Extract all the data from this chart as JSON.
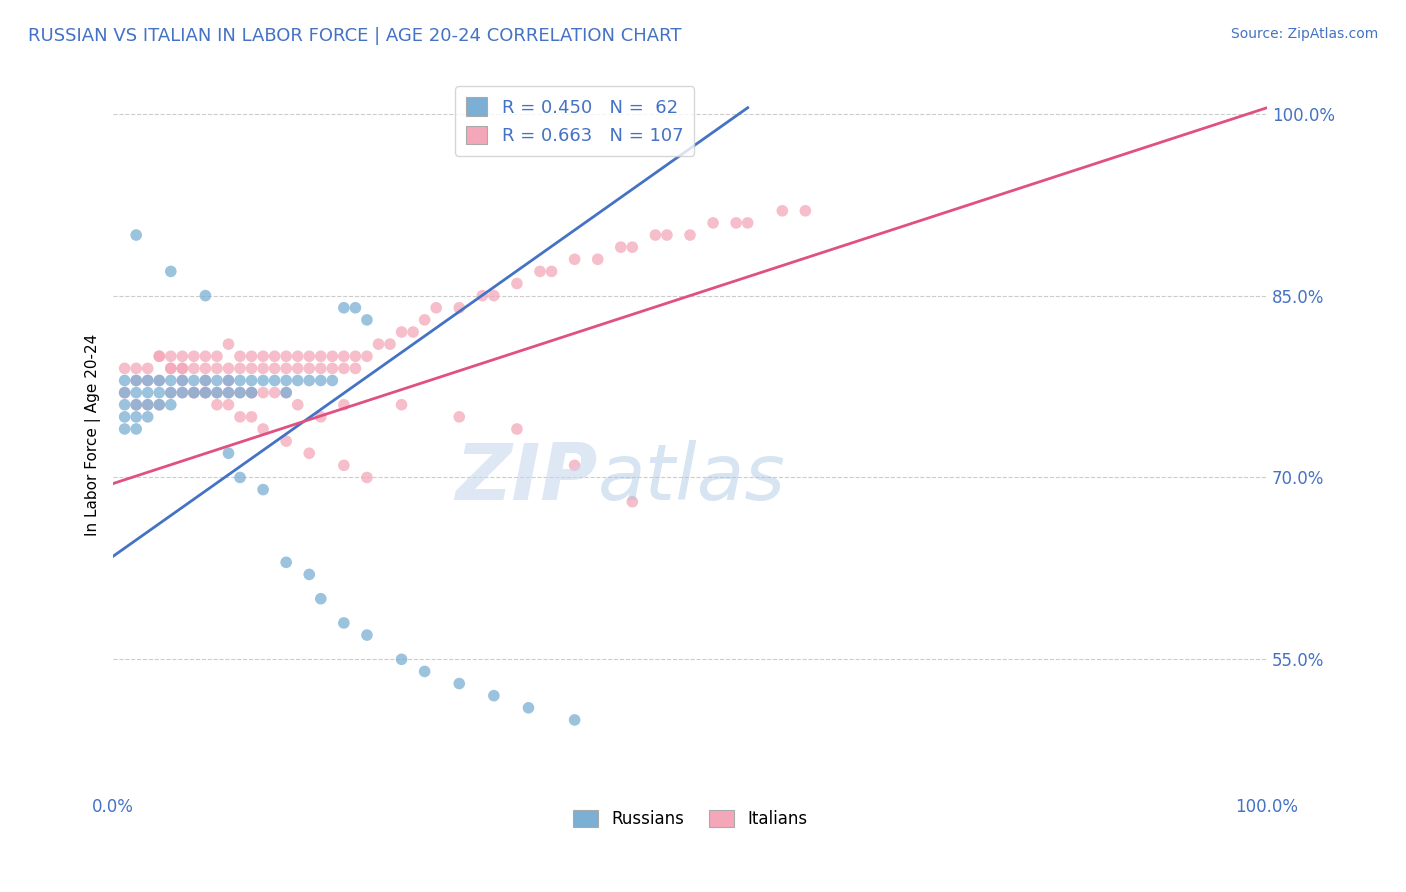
{
  "title": "RUSSIAN VS ITALIAN IN LABOR FORCE | AGE 20-24 CORRELATION CHART",
  "title_color": "#4472c4",
  "source_text": "Source: ZipAtlas.com",
  "ylabel": "In Labor Force | Age 20-24",
  "xlim": [
    0.0,
    1.0
  ],
  "ylim": [
    0.44,
    1.03
  ],
  "x_tick_positions": [
    0.0,
    0.25,
    0.5,
    0.75,
    1.0
  ],
  "x_tick_labels": [
    "0.0%",
    "",
    "",
    "",
    "100.0%"
  ],
  "y_tick_positions": [
    0.55,
    0.7,
    0.85,
    1.0
  ],
  "y_tick_labels": [
    "55.0%",
    "70.0%",
    "85.0%",
    "100.0%"
  ],
  "russian_R": 0.45,
  "russian_N": 62,
  "italian_R": 0.663,
  "italian_N": 107,
  "russian_color": "#7bafd4",
  "italian_color": "#f4a7b9",
  "russian_line_color": "#4472c4",
  "italian_line_color": "#e05080",
  "marker_size": 70,
  "background_color": "#ffffff",
  "grid_color": "#cccccc",
  "russian_x": [
    0.01,
    0.01,
    0.01,
    0.01,
    0.01,
    0.02,
    0.02,
    0.02,
    0.02,
    0.02,
    0.03,
    0.03,
    0.03,
    0.03,
    0.04,
    0.04,
    0.04,
    0.05,
    0.05,
    0.05,
    0.06,
    0.06,
    0.07,
    0.07,
    0.08,
    0.08,
    0.09,
    0.09,
    0.1,
    0.1,
    0.11,
    0.11,
    0.12,
    0.12,
    0.13,
    0.14,
    0.15,
    0.15,
    0.16,
    0.17,
    0.18,
    0.19,
    0.2,
    0.21,
    0.22,
    0.1,
    0.11,
    0.13,
    0.15,
    0.17,
    0.18,
    0.2,
    0.22,
    0.25,
    0.27,
    0.3,
    0.33,
    0.36,
    0.4,
    0.02,
    0.05,
    0.08
  ],
  "russian_y": [
    0.78,
    0.77,
    0.76,
    0.75,
    0.74,
    0.78,
    0.77,
    0.76,
    0.75,
    0.74,
    0.78,
    0.77,
    0.76,
    0.75,
    0.78,
    0.77,
    0.76,
    0.78,
    0.77,
    0.76,
    0.78,
    0.77,
    0.78,
    0.77,
    0.78,
    0.77,
    0.78,
    0.77,
    0.78,
    0.77,
    0.78,
    0.77,
    0.78,
    0.77,
    0.78,
    0.78,
    0.78,
    0.77,
    0.78,
    0.78,
    0.78,
    0.78,
    0.84,
    0.84,
    0.83,
    0.72,
    0.7,
    0.69,
    0.63,
    0.62,
    0.6,
    0.58,
    0.57,
    0.55,
    0.54,
    0.53,
    0.52,
    0.51,
    0.5,
    0.9,
    0.87,
    0.85
  ],
  "italian_x": [
    0.01,
    0.01,
    0.02,
    0.02,
    0.02,
    0.03,
    0.03,
    0.03,
    0.04,
    0.04,
    0.04,
    0.05,
    0.05,
    0.05,
    0.06,
    0.06,
    0.06,
    0.07,
    0.07,
    0.07,
    0.08,
    0.08,
    0.08,
    0.09,
    0.09,
    0.09,
    0.1,
    0.1,
    0.1,
    0.11,
    0.11,
    0.11,
    0.12,
    0.12,
    0.12,
    0.13,
    0.13,
    0.13,
    0.14,
    0.14,
    0.15,
    0.15,
    0.15,
    0.16,
    0.16,
    0.17,
    0.17,
    0.18,
    0.18,
    0.19,
    0.19,
    0.2,
    0.2,
    0.21,
    0.21,
    0.22,
    0.23,
    0.24,
    0.25,
    0.26,
    0.27,
    0.28,
    0.3,
    0.32,
    0.33,
    0.35,
    0.37,
    0.38,
    0.4,
    0.42,
    0.44,
    0.45,
    0.47,
    0.48,
    0.5,
    0.52,
    0.54,
    0.55,
    0.58,
    0.6,
    0.4,
    0.45,
    0.2,
    0.25,
    0.3,
    0.35,
    0.1,
    0.12,
    0.14,
    0.16,
    0.18,
    0.06,
    0.08,
    0.04,
    0.05,
    0.06,
    0.07,
    0.08,
    0.09,
    0.1,
    0.11,
    0.12,
    0.13,
    0.15,
    0.17,
    0.2,
    0.22
  ],
  "italian_y": [
    0.79,
    0.77,
    0.79,
    0.78,
    0.76,
    0.79,
    0.78,
    0.76,
    0.8,
    0.78,
    0.76,
    0.8,
    0.79,
    0.77,
    0.8,
    0.79,
    0.77,
    0.8,
    0.79,
    0.77,
    0.8,
    0.79,
    0.77,
    0.8,
    0.79,
    0.77,
    0.81,
    0.79,
    0.77,
    0.8,
    0.79,
    0.77,
    0.8,
    0.79,
    0.77,
    0.8,
    0.79,
    0.77,
    0.8,
    0.79,
    0.8,
    0.79,
    0.77,
    0.8,
    0.79,
    0.8,
    0.79,
    0.8,
    0.79,
    0.8,
    0.79,
    0.8,
    0.79,
    0.8,
    0.79,
    0.8,
    0.81,
    0.81,
    0.82,
    0.82,
    0.83,
    0.84,
    0.84,
    0.85,
    0.85,
    0.86,
    0.87,
    0.87,
    0.88,
    0.88,
    0.89,
    0.89,
    0.9,
    0.9,
    0.9,
    0.91,
    0.91,
    0.91,
    0.92,
    0.92,
    0.71,
    0.68,
    0.76,
    0.76,
    0.75,
    0.74,
    0.78,
    0.77,
    0.77,
    0.76,
    0.75,
    0.79,
    0.78,
    0.8,
    0.79,
    0.78,
    0.77,
    0.77,
    0.76,
    0.76,
    0.75,
    0.75,
    0.74,
    0.73,
    0.72,
    0.71,
    0.7
  ],
  "ru_line_x0": 0.0,
  "ru_line_y0": 0.635,
  "ru_line_x1": 0.55,
  "ru_line_y1": 1.005,
  "it_line_x0": 0.0,
  "it_line_y0": 0.695,
  "it_line_x1": 1.0,
  "it_line_y1": 1.005
}
